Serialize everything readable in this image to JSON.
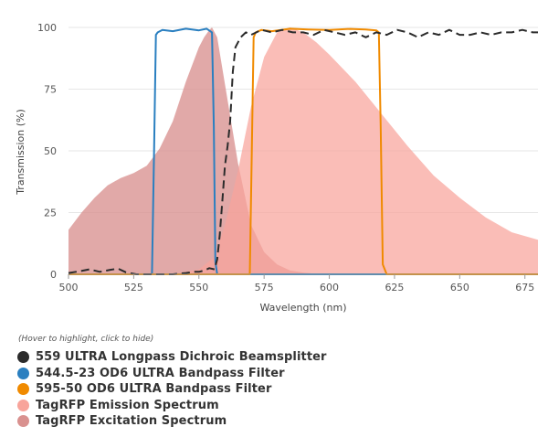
{
  "chart_data": {
    "type": "line",
    "xlabel": "Wavelength (nm)",
    "ylabel": "Transmission (%)",
    "xlim": [
      500,
      680
    ],
    "ylim": [
      0,
      100
    ],
    "x_ticks": [
      500,
      525,
      550,
      575,
      600,
      625,
      650,
      675
    ],
    "y_ticks": [
      0,
      25,
      50,
      75,
      100
    ],
    "grid": "horizontal",
    "series": [
      {
        "name": "559 ULTRA Longpass Dichroic Beamsplitter",
        "color": "#2b2b2b",
        "style": "dashed-line",
        "x": [
          500,
          504,
          508,
          512,
          516,
          519,
          522,
          526,
          530,
          535,
          540,
          545,
          548,
          550,
          552,
          554,
          556,
          557,
          558,
          559,
          560,
          561,
          562,
          563,
          564,
          566,
          568,
          570,
          574,
          578,
          582,
          586,
          590,
          594,
          598,
          602,
          606,
          610,
          614,
          618,
          622,
          626,
          630,
          634,
          638,
          642,
          646,
          650,
          654,
          658,
          662,
          666,
          670,
          674,
          678,
          680
        ],
        "y": [
          0.5,
          1.2,
          2,
          1,
          1.8,
          2.3,
          0.8,
          0,
          0,
          0,
          0,
          0.5,
          1,
          1,
          1.5,
          2.5,
          2,
          6,
          16,
          30,
          44,
          52,
          62,
          82,
          92,
          96,
          98,
          97,
          99,
          98,
          99,
          98,
          98,
          97,
          99,
          98,
          97,
          98,
          96,
          98,
          97,
          99,
          98,
          96,
          98,
          97,
          99,
          97,
          97,
          98,
          97,
          98,
          98,
          99,
          98,
          98
        ]
      },
      {
        "name": "544.5-23 OD6 ULTRA Bandpass Filter",
        "color": "#2a7fc0",
        "style": "line",
        "x": [
          500,
          530,
          532,
          532.8,
          533.5,
          534.2,
          536,
          540,
          545,
          550,
          553,
          555,
          555.7,
          556.3,
          557,
          560,
          680
        ],
        "y": [
          0,
          0,
          0,
          50,
          97,
          98,
          99,
          98.5,
          99.5,
          98.8,
          99.5,
          98,
          60,
          5,
          0,
          0,
          0
        ]
      },
      {
        "name": "595-50 OD6 ULTRA Bandpass Filter",
        "color": "#f08a00",
        "style": "line",
        "x": [
          500,
          568,
          569.5,
          570.3,
          571,
          571.8,
          574,
          578,
          585,
          592,
          600,
          608,
          614,
          618,
          619,
          619.7,
          620.5,
          622,
          680
        ],
        "y": [
          0,
          0,
          0,
          50,
          96,
          98,
          99,
          98.5,
          99.5,
          99.2,
          99,
          99.4,
          99.2,
          98.8,
          98,
          60,
          4,
          0,
          0
        ]
      },
      {
        "name": "TagRFP Emission Spectrum",
        "color": "#f8a49b",
        "style": "area",
        "x": [
          540,
          550,
          556,
          560,
          565,
          570,
          575,
          580,
          585,
          590,
          595,
          600,
          610,
          620,
          630,
          640,
          650,
          660,
          670,
          680
        ],
        "y": [
          0,
          2,
          7,
          20,
          42,
          68,
          88,
          98,
          100,
          98,
          94,
          89,
          78,
          65,
          52,
          40,
          31,
          23,
          17,
          14
        ]
      },
      {
        "name": "TagRFP Excitation Spectrum",
        "color": "#d9918f",
        "style": "area",
        "x": [
          500,
          505,
          510,
          515,
          520,
          525,
          530,
          535,
          540,
          545,
          550,
          552,
          554,
          555,
          557,
          560,
          565,
          570,
          575,
          580,
          585,
          590,
          595,
          600
        ],
        "y": [
          18,
          25,
          31,
          36,
          39,
          41,
          44,
          51,
          62,
          78,
          92,
          96,
          99,
          100,
          96,
          77,
          45,
          20,
          9,
          4,
          1.5,
          0.7,
          0.2,
          0
        ]
      }
    ]
  },
  "legend": {
    "hint": "(Hover to highlight, click to hide)",
    "items": [
      {
        "label": "559 ULTRA Longpass Dichroic Beamsplitter",
        "color": "#2b2b2b"
      },
      {
        "label": "544.5-23 OD6 ULTRA Bandpass Filter",
        "color": "#2a7fc0"
      },
      {
        "label": "595-50 OD6 ULTRA Bandpass Filter",
        "color": "#f08a00"
      },
      {
        "label": "TagRFP Emission Spectrum",
        "color": "#f8a49b"
      },
      {
        "label": "TagRFP Excitation Spectrum",
        "color": "#d9918f"
      }
    ]
  }
}
